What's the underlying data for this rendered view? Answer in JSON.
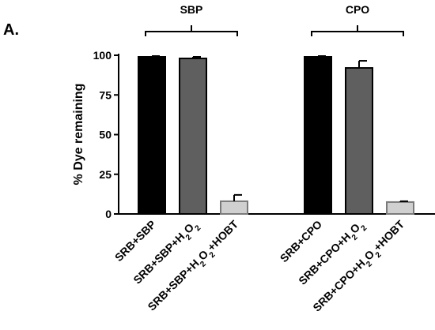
{
  "chart_data": {
    "type": "bar",
    "panel_label": "A.",
    "ylabel": "% Dye remaining",
    "ylim": [
      0,
      100
    ],
    "yticks": [
      "0",
      "25",
      "50",
      "75",
      "100"
    ],
    "grid": false,
    "groups": [
      {
        "label": "SBP",
        "bars": [
          {
            "category": "SRB+SBP",
            "value": 99,
            "error": 0.5,
            "color": "#000000"
          },
          {
            "category": "SRB+SBP+H2O2",
            "value": 98,
            "error": 1,
            "color": "#5f5f5f"
          },
          {
            "category": "SRB+SBP+H2O2+HOBT",
            "value": 8,
            "error": 4,
            "color": "#d0d0d0"
          }
        ]
      },
      {
        "label": "CPO",
        "bars": [
          {
            "category": "SRB+CPO",
            "value": 99,
            "error": 0.5,
            "color": "#000000"
          },
          {
            "category": "SRB+CPO+H2O2",
            "value": 92,
            "error": 4.5,
            "color": "#5f5f5f"
          },
          {
            "category": "SRB+CPO+H2O2+HOBT",
            "value": 7.5,
            "error": 0.5,
            "color": "#d0d0d0"
          }
        ]
      }
    ]
  }
}
